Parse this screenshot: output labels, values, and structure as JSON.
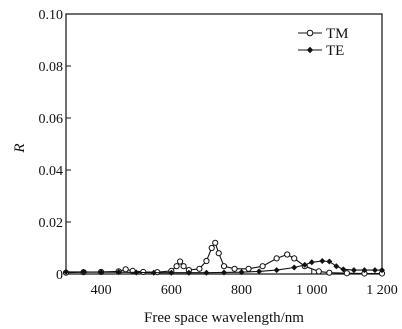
{
  "chart_data": {
    "type": "line",
    "xlabel": "Free space wavelength/nm",
    "ylabel": "R",
    "xlim": [
      300,
      1200
    ],
    "ylim": [
      0,
      0.1
    ],
    "x_ticks": [
      400,
      600,
      800,
      1000,
      1200
    ],
    "x_tick_labels": [
      "400",
      "600",
      "800",
      "1 000",
      "1 200"
    ],
    "y_ticks": [
      0,
      0.02,
      0.04,
      0.06,
      0.08,
      0.1
    ],
    "y_tick_labels": [
      "0",
      "0.02",
      "0.04",
      "0.06",
      "0.08",
      "0.10"
    ],
    "grid": false,
    "legend_position": "top-right",
    "series": [
      {
        "name": "TM",
        "marker": "open-circle",
        "color": "#111111",
        "points": [
          [
            300,
            0.0005
          ],
          [
            350,
            0.0007
          ],
          [
            400,
            0.0008
          ],
          [
            450,
            0.001
          ],
          [
            470,
            0.0018
          ],
          [
            490,
            0.0012
          ],
          [
            520,
            0.0008
          ],
          [
            560,
            0.0007
          ],
          [
            600,
            0.0012
          ],
          [
            615,
            0.003
          ],
          [
            625,
            0.0048
          ],
          [
            635,
            0.003
          ],
          [
            650,
            0.0015
          ],
          [
            680,
            0.002
          ],
          [
            700,
            0.005
          ],
          [
            715,
            0.01
          ],
          [
            725,
            0.012
          ],
          [
            735,
            0.008
          ],
          [
            750,
            0.003
          ],
          [
            780,
            0.002
          ],
          [
            820,
            0.002
          ],
          [
            860,
            0.003
          ],
          [
            900,
            0.006
          ],
          [
            930,
            0.0075
          ],
          [
            950,
            0.006
          ],
          [
            980,
            0.003
          ],
          [
            1020,
            0.001
          ],
          [
            1050,
            0.0005
          ],
          [
            1100,
            0.0003
          ],
          [
            1150,
            0.0002
          ],
          [
            1200,
            0.0002
          ]
        ]
      },
      {
        "name": "TE",
        "marker": "filled-diamond",
        "color": "#111111",
        "points": [
          [
            300,
            0.0008
          ],
          [
            350,
            0.0008
          ],
          [
            400,
            0.0007
          ],
          [
            450,
            0.0007
          ],
          [
            500,
            0.0006
          ],
          [
            550,
            0.0005
          ],
          [
            600,
            0.0005
          ],
          [
            650,
            0.0005
          ],
          [
            700,
            0.0005
          ],
          [
            750,
            0.0006
          ],
          [
            800,
            0.0007
          ],
          [
            850,
            0.001
          ],
          [
            900,
            0.0015
          ],
          [
            950,
            0.0025
          ],
          [
            980,
            0.0035
          ],
          [
            1000,
            0.0045
          ],
          [
            1030,
            0.005
          ],
          [
            1050,
            0.0048
          ],
          [
            1070,
            0.003
          ],
          [
            1090,
            0.0018
          ],
          [
            1120,
            0.0015
          ],
          [
            1150,
            0.0015
          ],
          [
            1180,
            0.0015
          ],
          [
            1200,
            0.0015
          ]
        ]
      }
    ]
  }
}
